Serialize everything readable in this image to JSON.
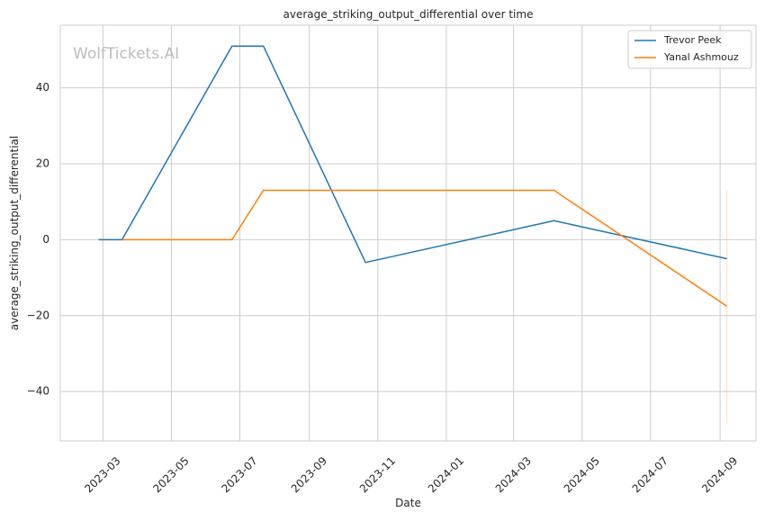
{
  "chart_data": {
    "type": "line",
    "title": "average_striking_output_differential over time",
    "xlabel": "Date",
    "ylabel": "average_striking_output_differential",
    "watermark": "WolfTickets.AI",
    "x_axis_type": "date",
    "xlim": [
      "2023-01-22",
      "2024-10-03"
    ],
    "ylim": [
      -53,
      56.5
    ],
    "x_ticks": [
      "2023-03",
      "2023-05",
      "2023-07",
      "2023-09",
      "2023-11",
      "2024-01",
      "2024-03",
      "2024-05",
      "2024-07",
      "2024-09"
    ],
    "y_ticks": [
      40,
      20,
      0,
      -20,
      -40
    ],
    "y_tick_labels": [
      "40",
      "20",
      "0",
      "−20",
      "−40"
    ],
    "grid": true,
    "legend_position": "top-right",
    "series": [
      {
        "name": "Trevor Peek",
        "color": "#1f77b4",
        "points": [
          [
            "2023-02-25",
            0
          ],
          [
            "2023-03-18",
            0
          ],
          [
            "2023-06-24",
            51
          ],
          [
            "2023-07-22",
            51
          ],
          [
            "2023-10-21",
            -6
          ],
          [
            "2024-04-06",
            5
          ],
          [
            "2024-09-07",
            -5
          ]
        ]
      },
      {
        "name": "Yanal Ashmouz",
        "color": "#ff7f0e",
        "points": [
          [
            "2023-03-18",
            0
          ],
          [
            "2023-06-24",
            0
          ],
          [
            "2023-07-22",
            13
          ],
          [
            "2024-04-06",
            13
          ],
          [
            "2024-09-07",
            -17.5
          ]
        ]
      }
    ],
    "band": {
      "color": "#ff7f0e",
      "x": "2024-09-07",
      "y_range": [
        -48.5,
        13
      ]
    }
  }
}
